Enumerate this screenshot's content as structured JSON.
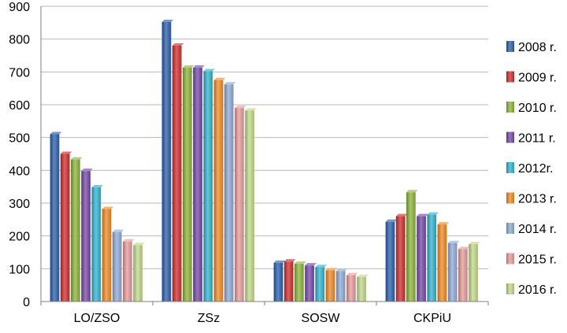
{
  "chart_data": {
    "type": "bar",
    "categories": [
      "LO/ZSO",
      "ZSz",
      "SOSW",
      "CKPiU"
    ],
    "series": [
      {
        "name": "2008 r.",
        "color": "#2a5faa",
        "values": [
          510,
          852,
          118,
          243
        ]
      },
      {
        "name": "2009 r.",
        "color": "#d22b2b",
        "values": [
          450,
          780,
          122,
          260
        ]
      },
      {
        "name": "2010 r.",
        "color": "#8db33a",
        "values": [
          433,
          713,
          115,
          333
        ]
      },
      {
        "name": "2011 r.",
        "color": "#7548a8",
        "values": [
          398,
          713,
          110,
          260
        ]
      },
      {
        "name": "2012r.",
        "color": "#2fb4cc",
        "values": [
          348,
          702,
          105,
          265
        ]
      },
      {
        "name": "2013 r.",
        "color": "#f08a24",
        "values": [
          282,
          675,
          95,
          235
        ]
      },
      {
        "name": "2014 r.",
        "color": "#8faad6",
        "values": [
          212,
          662,
          93,
          178
        ]
      },
      {
        "name": "2015 r.",
        "color": "#e89a9a",
        "values": [
          183,
          590,
          80,
          160
        ]
      },
      {
        "name": "2016 r.",
        "color": "#c2d98a",
        "values": [
          172,
          582,
          75,
          175
        ]
      }
    ],
    "ylim": [
      0,
      900
    ],
    "yticks": [
      "0",
      "100",
      "200",
      "300",
      "400",
      "500",
      "600",
      "700",
      "800",
      "900"
    ],
    "grid": true,
    "legend": "right"
  }
}
